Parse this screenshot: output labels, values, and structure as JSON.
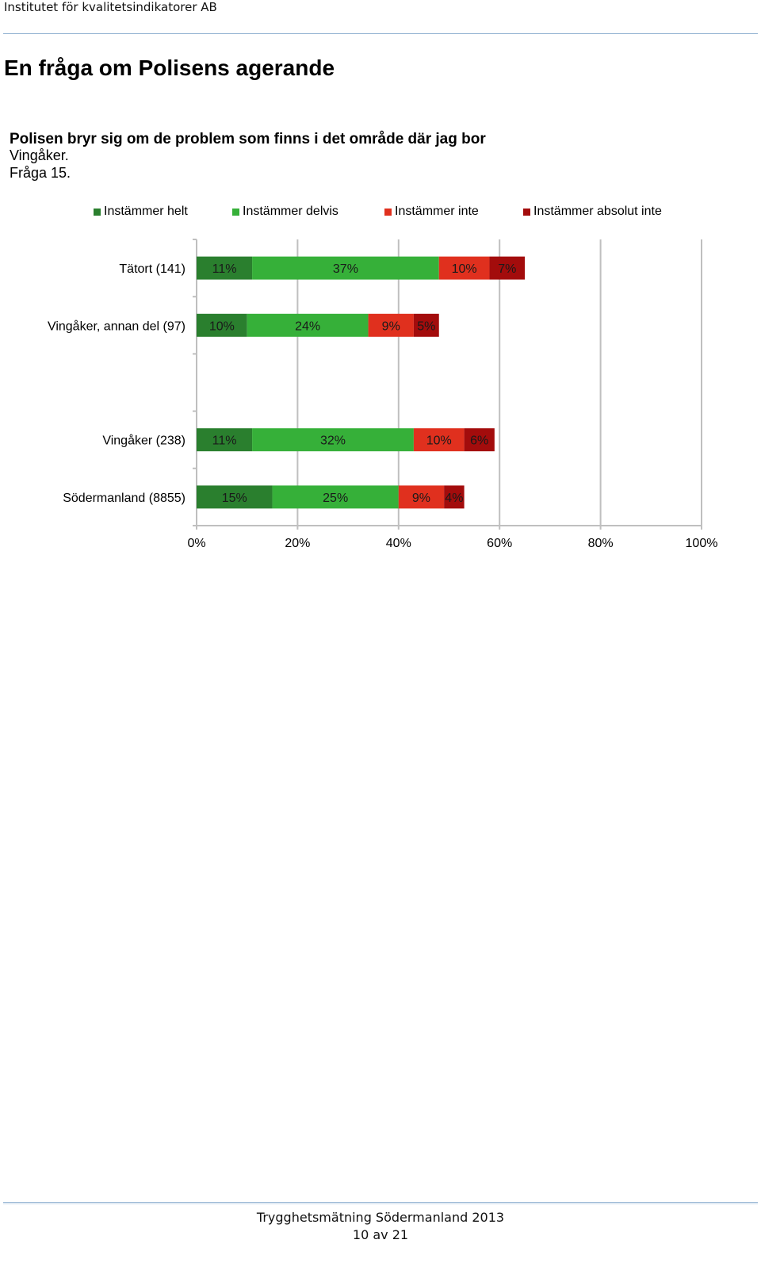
{
  "header": {
    "org": "Institutet för kvalitetsindikatorer AB"
  },
  "page": {
    "title": "En fråga om Polisens agerande"
  },
  "footer": {
    "report": "Trygghetsmätning Södermanland 2013",
    "page": "10 av 21"
  },
  "colors": {
    "helt": "#2a7f2e",
    "delvis": "#36b039",
    "inte": "#e0301e",
    "absolut": "#a30c0c",
    "grid": "#bfbfbf"
  },
  "chart_data": {
    "type": "bar",
    "orientation": "horizontal",
    "stacked": true,
    "title": "Polisen bryr sig om de problem som finns i det område där jag bor",
    "subtitle_lines": [
      "Vingåker.",
      "Fråga 15."
    ],
    "legend_position": "top",
    "xlim": [
      0,
      100
    ],
    "x_ticks": [
      "0%",
      "20%",
      "40%",
      "60%",
      "80%",
      "100%"
    ],
    "grid": true,
    "categories": [
      "Tätort (141)",
      "Vingåker, annan del (97)",
      "",
      "Vingåker (238)",
      "Södermanland (8855)"
    ],
    "series": [
      {
        "name": "Instämmer helt",
        "color": "#2a7f2e",
        "values": [
          11,
          10,
          null,
          11,
          15
        ]
      },
      {
        "name": "Instämmer delvis",
        "color": "#36b039",
        "values": [
          37,
          24,
          null,
          32,
          25
        ]
      },
      {
        "name": "Instämmer inte",
        "color": "#e0301e",
        "values": [
          10,
          9,
          null,
          10,
          9
        ]
      },
      {
        "name": "Instämmer absolut inte",
        "color": "#a30c0c",
        "values": [
          7,
          5,
          null,
          6,
          4
        ]
      }
    ]
  }
}
